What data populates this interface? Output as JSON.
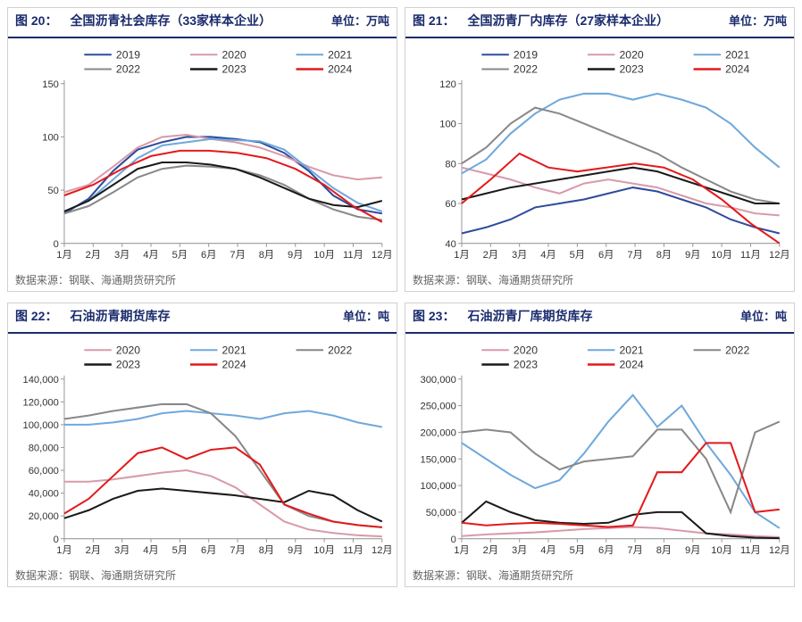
{
  "colors": {
    "s2019": "#2f4b9b",
    "s2020": "#d99aa8",
    "s2021": "#6fa8dc",
    "s2022": "#888888",
    "s2023": "#1a1a1a",
    "s2024": "#e31a1c",
    "axis": "#999999",
    "header": "#1a2b6d"
  },
  "line_width": 2,
  "bold_width": 2.5,
  "months": [
    "1月",
    "2月",
    "3月",
    "4月",
    "5月",
    "6月",
    "7月",
    "8月",
    "9月",
    "10月",
    "11月",
    "12月"
  ],
  "source_text": "数据来源：钢联、海通期货研究所",
  "charts": [
    {
      "fig_no": "图 20：",
      "title": "全国沥青社会库存（33家样本企业）",
      "unit": "单位：万吨",
      "ylim": [
        0,
        150
      ],
      "ytick_step": 50,
      "legend": [
        "2019",
        "2020",
        "2021",
        "2022",
        "2023",
        "2024"
      ],
      "series": {
        "2019": [
          28,
          42,
          68,
          88,
          95,
          100,
          100,
          98,
          95,
          85,
          68,
          45,
          32,
          28
        ],
        "2020": [
          48,
          55,
          72,
          90,
          100,
          102,
          98,
          95,
          90,
          82,
          72,
          64,
          60,
          62
        ],
        "2021": [
          30,
          40,
          60,
          80,
          92,
          95,
          98,
          97,
          96,
          88,
          70,
          52,
          38,
          30
        ],
        "2022": [
          28,
          35,
          48,
          62,
          70,
          73,
          72,
          70,
          64,
          55,
          42,
          32,
          25,
          22
        ],
        "2023": [
          30,
          40,
          55,
          70,
          76,
          76,
          74,
          70,
          62,
          52,
          42,
          36,
          34,
          40
        ],
        "2024": [
          45,
          55,
          70,
          82,
          87,
          87,
          85,
          80,
          70,
          55,
          35,
          20
        ]
      }
    },
    {
      "fig_no": "图 21：",
      "title": "全国沥青厂内库存（27家样本企业）",
      "unit": "单位：万吨",
      "ylim": [
        40,
        120
      ],
      "ytick_step": 20,
      "legend": [
        "2019",
        "2020",
        "2021",
        "2022",
        "2023",
        "2024"
      ],
      "series": {
        "2019": [
          45,
          48,
          52,
          58,
          60,
          62,
          65,
          68,
          66,
          62,
          58,
          52,
          48,
          45
        ],
        "2020": [
          78,
          75,
          72,
          68,
          65,
          70,
          72,
          70,
          68,
          64,
          60,
          58,
          55,
          54
        ],
        "2021": [
          75,
          82,
          95,
          105,
          112,
          115,
          115,
          112,
          115,
          112,
          108,
          100,
          88,
          78
        ],
        "2022": [
          80,
          88,
          100,
          108,
          105,
          100,
          95,
          90,
          85,
          78,
          72,
          66,
          62,
          60
        ],
        "2023": [
          62,
          65,
          68,
          70,
          72,
          74,
          76,
          78,
          76,
          72,
          68,
          64,
          60,
          60
        ],
        "2024": [
          60,
          72,
          85,
          78,
          76,
          78,
          80,
          78,
          72,
          62,
          50,
          40
        ]
      }
    },
    {
      "fig_no": "图 22：",
      "title": "石油沥青期货库存",
      "unit": "单位：吨",
      "ylim": [
        0,
        140000
      ],
      "ytick_step": 20000,
      "legend": [
        "2020",
        "2021",
        "2022",
        "2023",
        "2024"
      ],
      "series": {
        "2020": [
          50000,
          50000,
          52000,
          55000,
          58000,
          60000,
          55000,
          45000,
          30000,
          15000,
          8000,
          5000,
          3000,
          2000
        ],
        "2021": [
          100000,
          100000,
          102000,
          105000,
          110000,
          112000,
          110000,
          108000,
          105000,
          110000,
          112000,
          108000,
          102000,
          98000
        ],
        "2022": [
          105000,
          108000,
          112000,
          115000,
          118000,
          118000,
          110000,
          90000,
          60000,
          30000,
          20000,
          15000,
          12000,
          10000
        ],
        "2023": [
          18000,
          25000,
          35000,
          42000,
          44000,
          42000,
          40000,
          38000,
          35000,
          32000,
          42000,
          38000,
          25000,
          15000
        ],
        "2024": [
          22000,
          35000,
          55000,
          75000,
          80000,
          70000,
          78000,
          80000,
          65000,
          30000,
          22000,
          15000,
          12000,
          10000
        ]
      }
    },
    {
      "fig_no": "图 23：",
      "title": "石油沥青厂库期货库存",
      "unit": "单位：吨",
      "ylim": [
        0,
        300000
      ],
      "ytick_step": 50000,
      "legend": [
        "2020",
        "2021",
        "2022",
        "2023",
        "2024"
      ],
      "series": {
        "2020": [
          5000,
          8000,
          10000,
          12000,
          15000,
          18000,
          20000,
          22000,
          20000,
          15000,
          10000,
          8000,
          5000,
          3000
        ],
        "2021": [
          180000,
          150000,
          120000,
          95000,
          110000,
          160000,
          220000,
          270000,
          210000,
          250000,
          180000,
          120000,
          50000,
          20000
        ],
        "2022": [
          200000,
          205000,
          200000,
          160000,
          130000,
          145000,
          150000,
          155000,
          205000,
          205000,
          150000,
          50000,
          200000,
          220000
        ],
        "2023": [
          30000,
          70000,
          50000,
          35000,
          30000,
          28000,
          30000,
          45000,
          50000,
          50000,
          10000,
          5000,
          2000,
          1000
        ],
        "2024": [
          30000,
          25000,
          28000,
          30000,
          28000,
          25000,
          22000,
          25000,
          125000,
          125000,
          180000,
          180000,
          50000,
          55000
        ]
      }
    }
  ]
}
